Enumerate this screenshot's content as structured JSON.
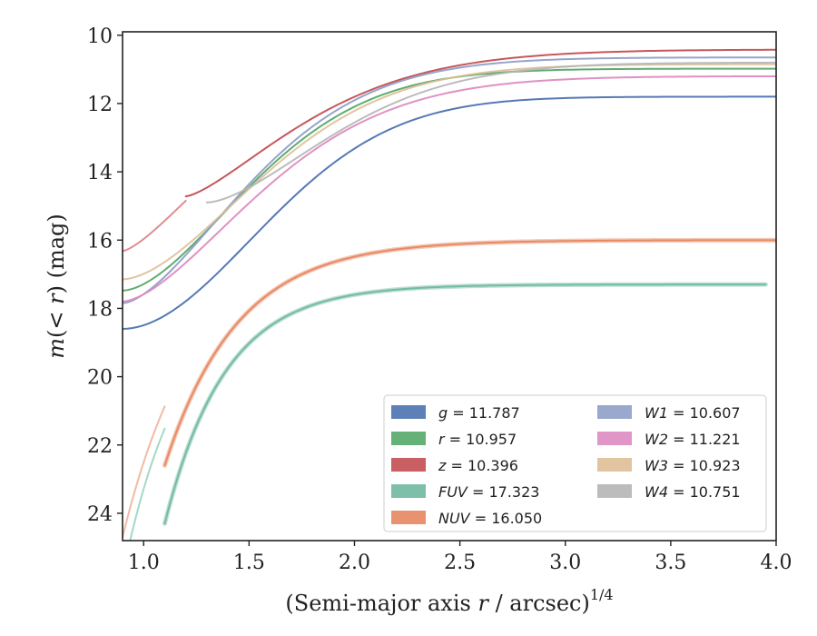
{
  "chart_data": {
    "type": "line",
    "xlabel_main": "(Semi-major axis ",
    "xlabel_var": "r",
    "xlabel_tail": " / arcsec)",
    "xlabel_exp": "1/4",
    "ylabel_main": "m",
    "ylabel_paren": "(< ",
    "ylabel_var": "r",
    "ylabel_tail": ") (mag)",
    "xlim": [
      0.9,
      4.0
    ],
    "ylim": [
      24.8,
      9.9
    ],
    "y_inverted": true,
    "x_ticks": [
      1.0,
      1.5,
      2.0,
      2.5,
      3.0,
      3.5,
      4.0
    ],
    "x_tick_labels": [
      "1.0",
      "1.5",
      "2.0",
      "2.5",
      "3.0",
      "3.5",
      "4.0"
    ],
    "y_ticks": [
      10,
      12,
      14,
      16,
      18,
      20,
      22,
      24
    ],
    "y_tick_labels": [
      "10",
      "12",
      "14",
      "16",
      "18",
      "20",
      "22",
      "24"
    ],
    "grid": false,
    "legend_placement": "lower-right",
    "series": [
      {
        "name": "g",
        "legend_value": "11.787",
        "color": "#4c72b0",
        "alpha": 0.95,
        "x0": 0.9,
        "x1": 4.0,
        "asym": 11.8,
        "amp": 6.8,
        "xk": 0.9,
        "k": 1.25,
        "p": 1.9
      },
      {
        "name": "r",
        "legend_value": "10.957",
        "color": "#55a868",
        "alpha": 0.95,
        "x0": 0.9,
        "x1": 4.0,
        "asym": 10.98,
        "amp": 6.5,
        "xk": 0.9,
        "k": 1.5,
        "p": 1.7
      },
      {
        "name": "z",
        "legend_value": "10.396",
        "color": "#c44e52",
        "alpha": 0.95,
        "x0": 1.2,
        "x1": 4.0,
        "asym": 10.42,
        "amp": 4.3,
        "xk": 1.2,
        "k": 1.55,
        "p": 1.4
      },
      {
        "name": "z-inner",
        "legend_value": "",
        "color": "#d9797c",
        "alpha": 0.85,
        "x0": 0.9,
        "x1": 1.2,
        "asym": 10.42,
        "amp": 5.9,
        "xk": 0.9,
        "k": 1.55,
        "p": 1.4
      },
      {
        "name": "FUV",
        "legend_value": "17.323",
        "color": "#6fb8a0",
        "alpha": 0.95,
        "x0": 1.1,
        "x1": 3.95,
        "asym": 17.3,
        "amp": 7.0,
        "xk": 1.1,
        "k": 3.5,
        "p": 1.0,
        "band": 0.25
      },
      {
        "name": "FUV-inner",
        "legend_value": "",
        "color": "#8ccfb6",
        "alpha": 0.8,
        "x0": 0.9,
        "x1": 1.1,
        "asym": 17.3,
        "amp": 8.5,
        "xk": 0.9,
        "k": 3.5,
        "p": 1.0
      },
      {
        "name": "NUV",
        "legend_value": "16.050",
        "color": "#e7865f",
        "alpha": 0.95,
        "x0": 1.1,
        "x1": 4.0,
        "asym": 16.0,
        "amp": 6.6,
        "xk": 1.1,
        "k": 2.9,
        "p": 1.0,
        "band": 0.1
      },
      {
        "name": "NUV-inner",
        "legend_value": "",
        "color": "#f0b39c",
        "alpha": 0.9,
        "x0": 0.9,
        "x1": 1.1,
        "asym": 16.0,
        "amp": 8.7,
        "xk": 0.9,
        "k": 2.9,
        "p": 1.0
      },
      {
        "name": "W1",
        "legend_value": "10.607",
        "color": "#8f9fc9",
        "alpha": 0.95,
        "x0": 0.9,
        "x1": 4.0,
        "asym": 10.65,
        "amp": 7.2,
        "xk": 0.9,
        "k": 1.5,
        "p": 1.6
      },
      {
        "name": "W2",
        "legend_value": "11.221",
        "color": "#dd8bc0",
        "alpha": 0.95,
        "x0": 0.9,
        "x1": 4.0,
        "asym": 11.2,
        "amp": 6.6,
        "xk": 0.9,
        "k": 1.3,
        "p": 1.6
      },
      {
        "name": "W3",
        "legend_value": "10.923",
        "color": "#ddbf96",
        "alpha": 0.9,
        "x0": 0.9,
        "x1": 4.0,
        "asym": 10.85,
        "amp": 6.3,
        "xk": 0.9,
        "k": 1.3,
        "p": 1.7
      },
      {
        "name": "W4",
        "legend_value": "10.751",
        "color": "#b5b5b5",
        "alpha": 0.9,
        "x0": 1.3,
        "x1": 4.0,
        "asym": 10.8,
        "amp": 4.1,
        "xk": 1.3,
        "k": 1.5,
        "p": 1.6
      }
    ],
    "legend": [
      {
        "label": "g",
        "value": "11.787",
        "color": "#4c72b0"
      },
      {
        "label": "r",
        "value": "10.957",
        "color": "#55a868"
      },
      {
        "label": "z",
        "value": "10.396",
        "color": "#c44e52"
      },
      {
        "label": "FUV",
        "value": "17.323",
        "color": "#6fb8a0"
      },
      {
        "label": "NUV",
        "value": "16.050",
        "color": "#e7865f"
      },
      {
        "label": "W1",
        "value": "10.607",
        "color": "#8f9fc9"
      },
      {
        "label": "W2",
        "value": "11.221",
        "color": "#dd8bc0"
      },
      {
        "label": "W3",
        "value": "10.923",
        "color": "#ddbf96"
      },
      {
        "label": "W4",
        "value": "10.751",
        "color": "#b5b5b5"
      }
    ]
  }
}
